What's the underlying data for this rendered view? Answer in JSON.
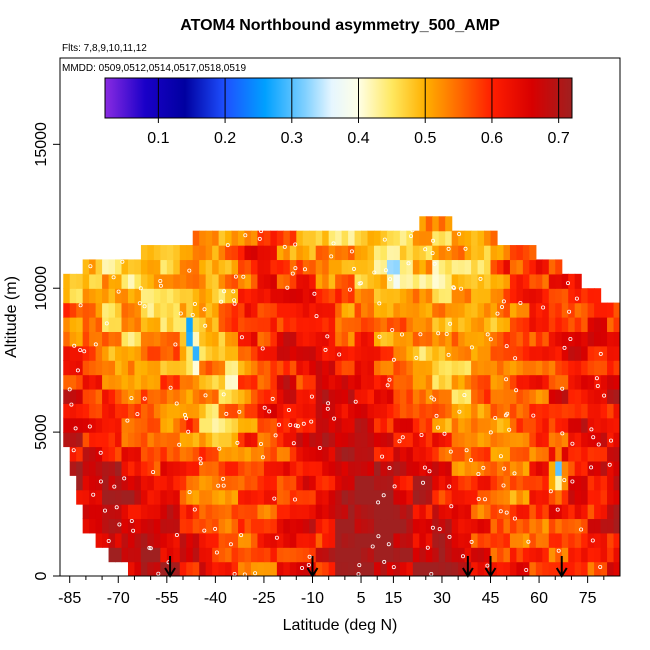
{
  "chart_data": {
    "type": "heatmap",
    "title": "ATOM4 Northbound asymmetry_500_AMP",
    "subtitle_flights": "Flts: 7,8,9,10,11,12",
    "subtitle_dates": "MMDD: 0509,0512,0514,0517,0518,0519",
    "xlabel": "Latitude (deg N)",
    "ylabel": "Altitude (m)",
    "xlim": [
      -88,
      85
    ],
    "ylim": [
      0,
      18000
    ],
    "x_ticks": [
      -85,
      -70,
      -55,
      -40,
      -25,
      -10,
      5,
      15,
      30,
      45,
      60,
      75
    ],
    "x_tick_labels": [
      "-85",
      "-70",
      "-55",
      "-40",
      "-25",
      "-10",
      "5",
      "15",
      "30",
      "45",
      "60",
      "75"
    ],
    "y_ticks": [
      0,
      5000,
      10000,
      15000
    ],
    "y_tick_labels": [
      "0",
      "5000",
      "10000",
      "15000"
    ],
    "colorbar": {
      "range": [
        0.02,
        0.72
      ],
      "ticks": [
        0.1,
        0.2,
        0.3,
        0.4,
        0.5,
        0.6,
        0.7
      ],
      "tick_labels": [
        "0.1",
        "0.2",
        "0.3",
        "0.4",
        "0.5",
        "0.6",
        "0.7"
      ],
      "stops": [
        {
          "v": 0.02,
          "color": "#8a2be2"
        },
        {
          "v": 0.08,
          "color": "#1a00c8"
        },
        {
          "v": 0.14,
          "color": "#0000a0"
        },
        {
          "v": 0.2,
          "color": "#1e50ff"
        },
        {
          "v": 0.26,
          "color": "#00a0ff"
        },
        {
          "v": 0.32,
          "color": "#80d0ff"
        },
        {
          "v": 0.36,
          "color": "#e6f6ff"
        },
        {
          "v": 0.4,
          "color": "#ffffe6"
        },
        {
          "v": 0.45,
          "color": "#ffe860"
        },
        {
          "v": 0.5,
          "color": "#ffb000"
        },
        {
          "v": 0.55,
          "color": "#ff6a00"
        },
        {
          "v": 0.6,
          "color": "#ff1e00"
        },
        {
          "v": 0.66,
          "color": "#d80000"
        },
        {
          "v": 0.72,
          "color": "#a02020"
        }
      ]
    },
    "field": {
      "alt_top_by_lat": [
        [
          -87,
          10500
        ],
        [
          -75,
          11000
        ],
        [
          -65,
          11200
        ],
        [
          -50,
          11600
        ],
        [
          -40,
          12000
        ],
        [
          -25,
          12200
        ],
        [
          -10,
          12200
        ],
        [
          5,
          12000
        ],
        [
          20,
          12000
        ],
        [
          28,
          12600
        ],
        [
          35,
          12000
        ],
        [
          45,
          11800
        ],
        [
          55,
          11500
        ],
        [
          62,
          11000
        ],
        [
          70,
          10500
        ],
        [
          78,
          9800
        ],
        [
          83,
          9500
        ]
      ],
      "alt_bottom_by_lat": [
        [
          -87,
          5000
        ],
        [
          -84,
          3500
        ],
        [
          -80,
          1500
        ],
        [
          -75,
          1000
        ],
        [
          -70,
          400
        ],
        [
          -60,
          0
        ],
        [
          83,
          0
        ]
      ],
      "low_values": [
        {
          "lat": -48,
          "alt": 8500,
          "value": 0.2
        },
        {
          "lat": -46,
          "alt": 7700,
          "value": 0.28
        },
        {
          "lat": -35,
          "alt": 7000,
          "value": 0.33
        },
        {
          "lat": 15,
          "alt": 10700,
          "value": 0.27
        },
        {
          "lat": 66,
          "alt": 3700,
          "value": 0.3
        }
      ]
    },
    "arrow_latitudes": [
      -54,
      -10,
      38,
      45,
      67
    ]
  }
}
